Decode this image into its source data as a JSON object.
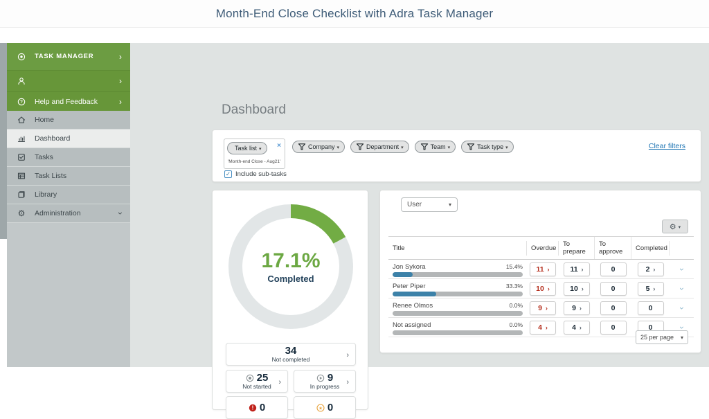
{
  "page_title": "Month-End Close Checklist with Adra Task Manager",
  "sidebar": {
    "green_items": [
      {
        "label": "TASK MANAGER",
        "icon": "app-logo-icon"
      },
      {
        "label": "",
        "icon": "person-icon"
      },
      {
        "label": "Help and Feedback",
        "icon": "help-icon"
      }
    ],
    "items": [
      {
        "label": "Home",
        "icon": "home-icon",
        "selected": false,
        "expand": false
      },
      {
        "label": "Dashboard",
        "icon": "dashboard-icon",
        "selected": true,
        "expand": false
      },
      {
        "label": "Tasks",
        "icon": "tasks-icon",
        "selected": false,
        "expand": false
      },
      {
        "label": "Task Lists",
        "icon": "task-lists-icon",
        "selected": false,
        "expand": false
      },
      {
        "label": "Library",
        "icon": "library-icon",
        "selected": false,
        "expand": false
      },
      {
        "label": "Administration",
        "icon": "gear-icon",
        "selected": false,
        "expand": true
      }
    ]
  },
  "main": {
    "heading": "Dashboard"
  },
  "filters": {
    "task_list": {
      "label": "Task list",
      "value": "'Month-end Close - Aug21'"
    },
    "chips": [
      "Company",
      "Department",
      "Team",
      "Task type"
    ],
    "clear_label": "Clear filters",
    "include_label": "Include sub-tasks"
  },
  "donut": {
    "value": 17.1,
    "percent_label": "17.1%",
    "label": "Completed"
  },
  "stats": [
    {
      "value": "34",
      "label": "Not completed",
      "icon": ""
    },
    {
      "value": "25",
      "label": "Not started",
      "icon": "not-started-icon"
    },
    {
      "value": "9",
      "label": "In progress",
      "icon": "in-progress-icon"
    },
    {
      "value": "0",
      "label": "",
      "icon": "overdue-alert-icon"
    },
    {
      "value": "0",
      "label": "",
      "icon": "star-icon"
    }
  ],
  "table": {
    "user_filter": "User",
    "columns": [
      "Title",
      "Overdue",
      "To prepare",
      "To approve",
      "Completed"
    ],
    "rows": [
      {
        "name": "Jon Sykora",
        "percent": "15.4%",
        "progress": 15.4,
        "overdue": "11",
        "to_prepare": "11",
        "to_approve": "0",
        "completed": "2"
      },
      {
        "name": "Peter Piper",
        "percent": "33.3%",
        "progress": 33.3,
        "overdue": "10",
        "to_prepare": "10",
        "to_approve": "0",
        "completed": "5"
      },
      {
        "name": "Renee Olmos",
        "percent": "0.0%",
        "progress": 0,
        "overdue": "9",
        "to_prepare": "9",
        "to_approve": "0",
        "completed": "0"
      },
      {
        "name": "Not assigned",
        "percent": "0.0%",
        "progress": 0,
        "overdue": "4",
        "to_prepare": "4",
        "to_approve": "0",
        "completed": "0"
      }
    ],
    "pagination": "25 per page"
  },
  "colors": {
    "sidebar_green": "#6c9c42",
    "donut_green": "#72ac44",
    "donut_track": "#e2e6e7",
    "overdue_red": "#b5301f",
    "progress_blue": "#3c81a8",
    "link_blue": "#2076b4",
    "navy": "#17293a"
  }
}
